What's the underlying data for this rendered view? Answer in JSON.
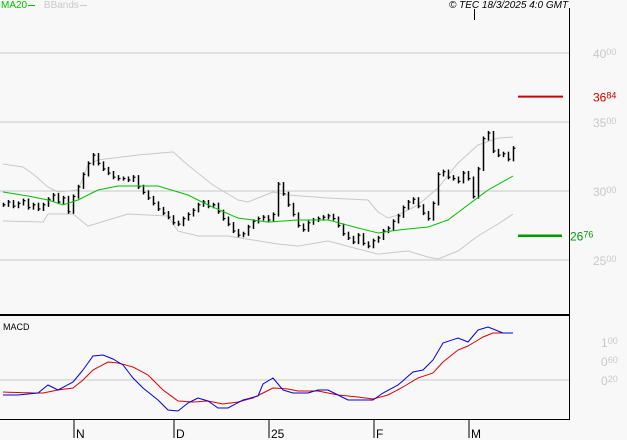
{
  "legend": {
    "ma_label": "MA20",
    "bbands_label": "BBands",
    "ma_color": "#00c000",
    "bbands_color": "#c8c8c8"
  },
  "copyright": "© TEC 18/3/2025 4:0 GMT",
  "price_axis": {
    "ticks": [
      {
        "value": 40.0,
        "big": "40",
        "small": "00"
      },
      {
        "value": 35.0,
        "big": "35",
        "small": "00"
      },
      {
        "value": 30.0,
        "big": "30",
        "small": "00"
      },
      {
        "value": 25.0,
        "big": "25",
        "small": "00"
      }
    ],
    "resistance": {
      "value": 36.84,
      "big": "36",
      "small": "84",
      "color": "#cc0000"
    },
    "support": {
      "value": 26.76,
      "big": "26",
      "small": "76",
      "color": "#009900"
    }
  },
  "macd_panel": {
    "title": "MACD",
    "ticks": [
      {
        "value": 1.0,
        "big": "1",
        "small": "00"
      },
      {
        "value": 0.6,
        "big": "0",
        "small": "60"
      },
      {
        "value": 0.2,
        "big": "0",
        "small": "20"
      }
    ],
    "macd_color": "#0000dd",
    "signal_color": "#dd0000"
  },
  "x_axis": [
    {
      "label": "N",
      "bar": 14
    },
    {
      "label": "D",
      "bar": 34
    },
    {
      "label": "25",
      "bar": 53
    },
    {
      "label": "F",
      "bar": 74
    },
    {
      "label": "M",
      "bar": 93
    }
  ],
  "chart_data": {
    "type": "bar",
    "closes": [
      29.0,
      29.2,
      28.9,
      29.1,
      29.3,
      28.8,
      29.0,
      28.7,
      29.0,
      29.4,
      29.7,
      29.2,
      29.5,
      28.5,
      29.6,
      30.3,
      31.2,
      32.0,
      32.6,
      32.0,
      31.6,
      31.3,
      31.0,
      30.9,
      30.9,
      30.8,
      31.0,
      30.3,
      29.9,
      29.5,
      29.1,
      28.7,
      28.4,
      28.1,
      27.7,
      27.6,
      28.0,
      28.3,
      28.6,
      29.0,
      29.2,
      28.9,
      29.0,
      28.5,
      28.0,
      27.6,
      27.1,
      26.8,
      26.9,
      27.4,
      27.8,
      28.0,
      28.1,
      27.9,
      28.3,
      30.5,
      29.8,
      29.0,
      28.3,
      27.5,
      27.2,
      27.7,
      27.9,
      28.0,
      28.1,
      28.2,
      28.0,
      27.5,
      26.9,
      26.6,
      26.3,
      26.8,
      26.2,
      26.0,
      26.4,
      26.6,
      27.1,
      27.3,
      27.8,
      28.2,
      28.8,
      29.2,
      29.4,
      28.9,
      28.4,
      28.0,
      29.1,
      31.2,
      31.4,
      31.0,
      30.9,
      30.7,
      31.3,
      30.9,
      29.6,
      31.6,
      33.8,
      34.2,
      32.9,
      32.6,
      32.7,
      32.3,
      33.1
    ],
    "ma20": [
      [
        0,
        29.93
      ],
      [
        5,
        29.64
      ],
      [
        9,
        29.35
      ],
      [
        12,
        28.99
      ],
      [
        15,
        29.35
      ],
      [
        19,
        30.07
      ],
      [
        23,
        30.36
      ],
      [
        31,
        30.36
      ],
      [
        37,
        29.71
      ],
      [
        41,
        28.99
      ],
      [
        47,
        28.04
      ],
      [
        53,
        27.75
      ],
      [
        59,
        27.9
      ],
      [
        65,
        27.9
      ],
      [
        71,
        27.32
      ],
      [
        75,
        26.96
      ],
      [
        79,
        27.17
      ],
      [
        85,
        27.39
      ],
      [
        89,
        27.9
      ],
      [
        93,
        28.99
      ],
      [
        97,
        30.07
      ],
      [
        102,
        31.09
      ]
    ],
    "bband_upper": [
      [
        0,
        31.96
      ],
      [
        4,
        31.74
      ],
      [
        6,
        31.23
      ],
      [
        9,
        30.29
      ],
      [
        11,
        29.93
      ],
      [
        15,
        30.07
      ],
      [
        17,
        31.88
      ],
      [
        19,
        32.25
      ],
      [
        27,
        32.61
      ],
      [
        34,
        32.83
      ],
      [
        37,
        31.88
      ],
      [
        42,
        30.43
      ],
      [
        47,
        29.35
      ],
      [
        49,
        29.2
      ],
      [
        54,
        29.93
      ],
      [
        57,
        29.71
      ],
      [
        65,
        29.49
      ],
      [
        73,
        29.35
      ],
      [
        75,
        28.48
      ],
      [
        77,
        28.04
      ],
      [
        79,
        28.26
      ],
      [
        83,
        28.99
      ],
      [
        87,
        30.22
      ],
      [
        91,
        32.03
      ],
      [
        95,
        33.33
      ],
      [
        99,
        33.84
      ],
      [
        102,
        33.91
      ]
    ],
    "bband_lower": [
      [
        0,
        27.83
      ],
      [
        8,
        27.75
      ],
      [
        9,
        28.33
      ],
      [
        14,
        28.33
      ],
      [
        17,
        27.46
      ],
      [
        25,
        28.33
      ],
      [
        33,
        28.19
      ],
      [
        35,
        27.1
      ],
      [
        39,
        26.74
      ],
      [
        45,
        26.74
      ],
      [
        55,
        26.16
      ],
      [
        59,
        26.01
      ],
      [
        65,
        26.38
      ],
      [
        71,
        25.8
      ],
      [
        75,
        25.43
      ],
      [
        81,
        25.65
      ],
      [
        85,
        25.22
      ],
      [
        87,
        25.07
      ],
      [
        91,
        25.65
      ],
      [
        95,
        26.74
      ],
      [
        99,
        27.61
      ],
      [
        102,
        28.33
      ]
    ],
    "macd": [
      [
        0,
        -0.116
      ],
      [
        3,
        -0.116
      ],
      [
        7,
        -0.074
      ],
      [
        9,
        0.095
      ],
      [
        11,
        -0.011
      ],
      [
        14,
        0.158
      ],
      [
        16,
        0.41
      ],
      [
        18,
        0.705
      ],
      [
        20,
        0.726
      ],
      [
        22,
        0.642
      ],
      [
        24,
        0.516
      ],
      [
        26,
        0.242
      ],
      [
        28,
        0.032
      ],
      [
        31,
        -0.221
      ],
      [
        33,
        -0.432
      ],
      [
        35,
        -0.453
      ],
      [
        37,
        -0.284
      ],
      [
        39,
        -0.179
      ],
      [
        41,
        -0.242
      ],
      [
        43,
        -0.389
      ],
      [
        45,
        -0.389
      ],
      [
        48,
        -0.221
      ],
      [
        51,
        -0.137
      ],
      [
        52,
        0.116
      ],
      [
        54,
        0.242
      ],
      [
        56,
        -0.011
      ],
      [
        58,
        -0.074
      ],
      [
        61,
        -0.074
      ],
      [
        63,
        -0.011
      ],
      [
        65,
        -0.011
      ],
      [
        67,
        -0.116
      ],
      [
        69,
        -0.221
      ],
      [
        72,
        -0.221
      ],
      [
        74,
        -0.221
      ],
      [
        76,
        -0.074
      ],
      [
        79,
        0.095
      ],
      [
        82,
        0.368
      ],
      [
        84,
        0.41
      ],
      [
        86,
        0.621
      ],
      [
        88,
        0.979
      ],
      [
        91,
        1.084
      ],
      [
        93,
        1.0
      ],
      [
        95,
        1.253
      ],
      [
        97,
        1.316
      ],
      [
        100,
        1.189
      ],
      [
        102,
        1.189
      ]
    ],
    "signal": [
      [
        0,
        -0.053
      ],
      [
        6,
        -0.074
      ],
      [
        8,
        -0.074
      ],
      [
        11,
        -0.011
      ],
      [
        14,
        0.032
      ],
      [
        16,
        0.2
      ],
      [
        18,
        0.41
      ],
      [
        21,
        0.579
      ],
      [
        23,
        0.558
      ],
      [
        26,
        0.474
      ],
      [
        29,
        0.305
      ],
      [
        32,
        -0.011
      ],
      [
        35,
        -0.242
      ],
      [
        38,
        -0.263
      ],
      [
        41,
        -0.242
      ],
      [
        44,
        -0.305
      ],
      [
        47,
        -0.263
      ],
      [
        50,
        -0.179
      ],
      [
        52,
        -0.074
      ],
      [
        54,
        0.032
      ],
      [
        57,
        0.011
      ],
      [
        59,
        -0.032
      ],
      [
        63,
        -0.032
      ],
      [
        67,
        -0.116
      ],
      [
        71,
        -0.158
      ],
      [
        74,
        -0.2
      ],
      [
        77,
        -0.116
      ],
      [
        80,
        0.053
      ],
      [
        83,
        0.242
      ],
      [
        86,
        0.347
      ],
      [
        88,
        0.579
      ],
      [
        91,
        0.832
      ],
      [
        93,
        0.916
      ],
      [
        96,
        1.105
      ],
      [
        98,
        1.189
      ],
      [
        102,
        1.189
      ]
    ]
  }
}
